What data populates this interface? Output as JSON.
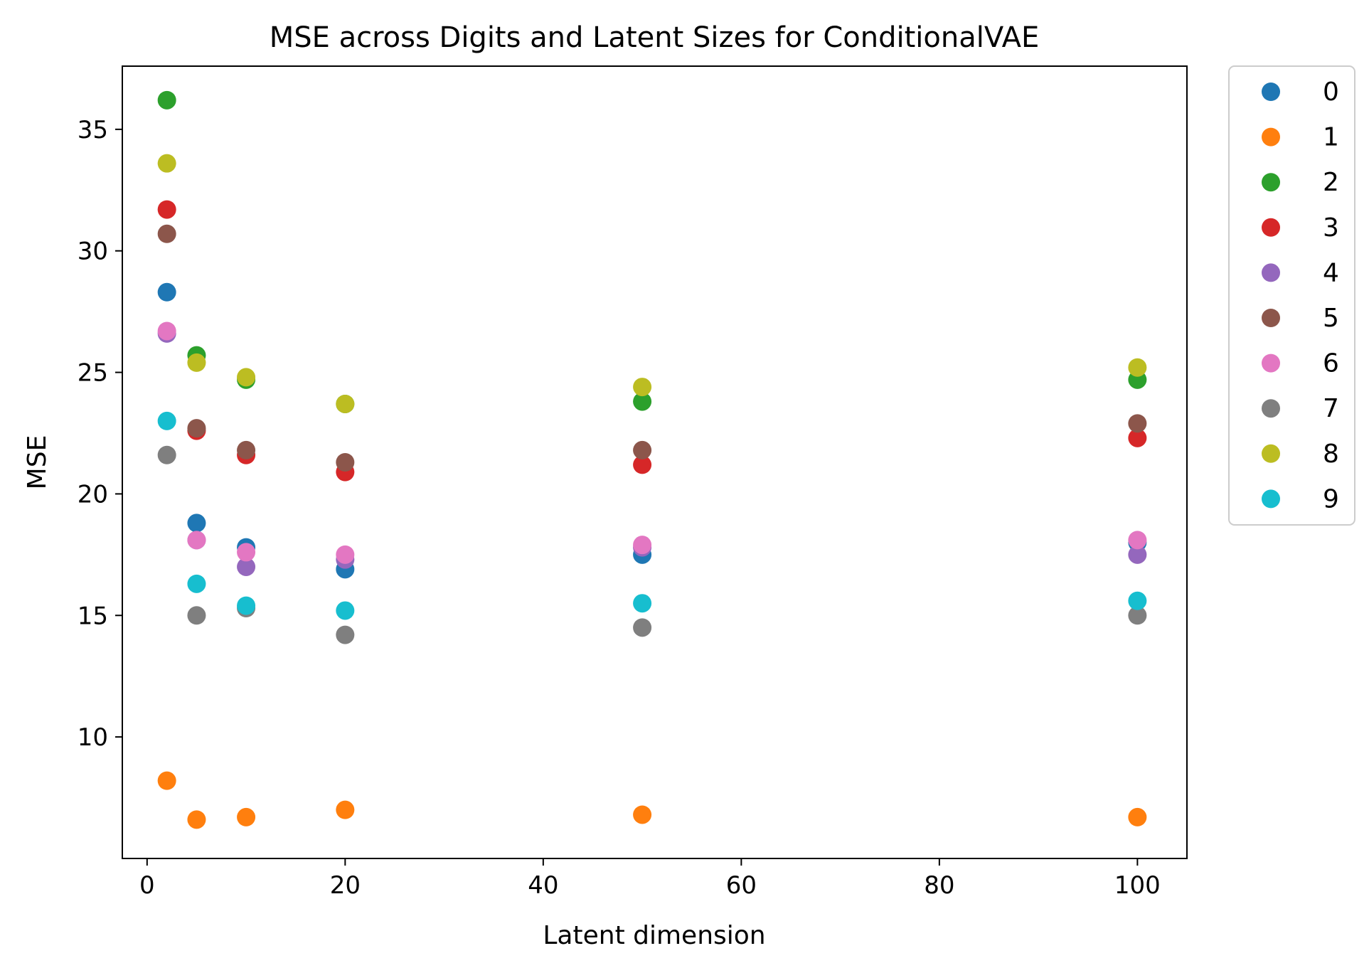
{
  "chart_data": {
    "type": "scatter",
    "title": "MSE across Digits and Latent Sizes for ConditionalVAE",
    "xlabel": "Latent dimension",
    "ylabel": "MSE",
    "xlim": [
      -2.5,
      105
    ],
    "ylim": [
      5.0,
      37.6
    ],
    "x_ticks": [
      0,
      20,
      40,
      60,
      80,
      100
    ],
    "y_ticks": [
      10,
      15,
      20,
      25,
      30,
      35
    ],
    "x_tick_labels": [
      "0",
      "20",
      "40",
      "60",
      "80",
      "100"
    ],
    "y_tick_labels": [
      "10",
      "15",
      "20",
      "25",
      "30",
      "35"
    ],
    "grid": false,
    "legend": {
      "position": "outside-right-top"
    },
    "x": [
      2,
      5,
      10,
      20,
      50,
      100
    ],
    "series": [
      {
        "name": "0",
        "color": "#1f77b4",
        "values": [
          28.3,
          18.8,
          17.8,
          16.9,
          17.5,
          18.0
        ]
      },
      {
        "name": "1",
        "color": "#ff7f0e",
        "values": [
          8.2,
          6.6,
          6.7,
          7.0,
          6.8,
          6.7
        ]
      },
      {
        "name": "2",
        "color": "#2ca02c",
        "values": [
          36.2,
          25.7,
          24.7,
          23.7,
          23.8,
          24.7
        ]
      },
      {
        "name": "3",
        "color": "#d62728",
        "values": [
          31.7,
          22.6,
          21.6,
          20.9,
          21.2,
          22.3
        ]
      },
      {
        "name": "4",
        "color": "#9467bd",
        "values": [
          26.6,
          18.1,
          17.0,
          17.3,
          17.8,
          17.5
        ]
      },
      {
        "name": "5",
        "color": "#8c564b",
        "values": [
          30.7,
          22.7,
          21.8,
          21.3,
          21.8,
          22.9
        ]
      },
      {
        "name": "6",
        "color": "#e377c2",
        "values": [
          26.7,
          18.1,
          17.6,
          17.5,
          17.9,
          18.1
        ]
      },
      {
        "name": "7",
        "color": "#7f7f7f",
        "values": [
          21.6,
          15.0,
          15.3,
          14.2,
          14.5,
          15.0
        ]
      },
      {
        "name": "8",
        "color": "#bcbd22",
        "values": [
          33.6,
          25.4,
          24.8,
          23.7,
          24.4,
          25.2
        ]
      },
      {
        "name": "9",
        "color": "#17becf",
        "values": [
          23.0,
          16.3,
          15.4,
          15.2,
          15.5,
          15.6
        ]
      }
    ]
  }
}
